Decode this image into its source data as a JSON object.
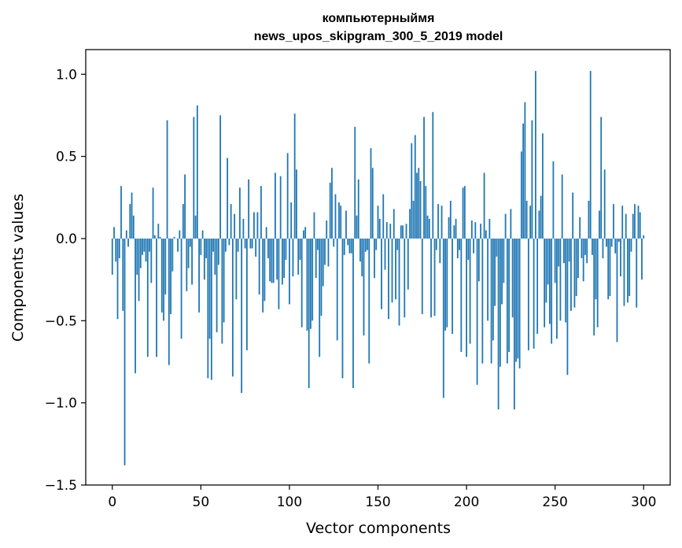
{
  "chart_data": {
    "type": "bar",
    "title": "компьютерныймя",
    "subtitle": "news_upos_skipgram_300_5_2019 model",
    "xlabel": "Vector components",
    "ylabel": "Components values",
    "xlim": [
      -15,
      315
    ],
    "ylim": [
      -1.5,
      1.15
    ],
    "xticks": [
      0,
      50,
      100,
      150,
      200,
      250,
      300
    ],
    "yticks": [
      -1.5,
      -1.0,
      -0.5,
      0.0,
      0.5,
      1.0
    ],
    "xtick_labels": [
      "0",
      "50",
      "100",
      "150",
      "200",
      "250",
      "300"
    ],
    "ytick_labels": [
      "−1.5",
      "−1.0",
      "−0.5",
      "0.0",
      "0.5",
      "1.0"
    ],
    "bar_color": "#1f77b4",
    "values": [
      -0.22,
      0.07,
      -0.14,
      -0.49,
      -0.12,
      0.32,
      -0.44,
      -1.38,
      0.05,
      -0.05,
      0.21,
      0.28,
      0.14,
      -0.82,
      -0.22,
      -0.38,
      -0.18,
      -0.1,
      -0.08,
      -0.14,
      -0.72,
      -0.08,
      -0.27,
      0.31,
      0.02,
      -0.72,
      0.09,
      0.01,
      -0.45,
      -0.5,
      -0.34,
      0.72,
      -0.77,
      -0.46,
      -0.2,
      0.01,
      0.0,
      -0.08,
      0.05,
      -0.61,
      0.21,
      0.39,
      -0.32,
      -0.18,
      -0.05,
      -0.28,
      0.74,
      0.14,
      0.81,
      -0.45,
      -0.1,
      0.05,
      -0.25,
      -0.12,
      -0.85,
      -0.61,
      -0.86,
      -0.08,
      -0.22,
      -0.57,
      -0.16,
      0.75,
      -0.64,
      -0.51,
      -0.08,
      0.49,
      -0.04,
      0.21,
      -0.84,
      0.15,
      -0.37,
      -0.08,
      0.31,
      -0.94,
      0.12,
      -0.06,
      -0.68,
      0.36,
      -0.06,
      -0.06,
      0.16,
      -0.11,
      0.16,
      -0.34,
      0.32,
      -0.45,
      -0.38,
      0.07,
      -0.12,
      -0.26,
      -0.27,
      -0.27,
      0.4,
      -0.25,
      -0.43,
      0.38,
      -0.28,
      -0.24,
      -0.13,
      0.52,
      -0.4,
      0.22,
      -0.23,
      0.76,
      0.42,
      -0.22,
      -0.13,
      -0.54,
      0.05,
      0.07,
      -0.56,
      -0.91,
      -0.55,
      -0.5,
      0.16,
      -0.24,
      -0.07,
      -0.72,
      -0.47,
      -0.29,
      -0.16,
      0.11,
      -0.17,
      0.34,
      0.43,
      -0.05,
      0.27,
      -0.62,
      0.22,
      0.2,
      -0.85,
      -0.1,
      0.17,
      -0.04,
      -0.09,
      -0.09,
      -0.91,
      0.68,
      0.14,
      0.36,
      -0.14,
      -0.23,
      -0.59,
      -0.08,
      -0.07,
      -0.76,
      0.55,
      0.43,
      -0.24,
      -0.07,
      0.2,
      0.12,
      -0.43,
      0.27,
      -0.19,
      0.1,
      -0.49,
      0.09,
      -0.39,
      0.18,
      -0.37,
      -0.07,
      -0.53,
      0.08,
      0.08,
      -0.48,
      0.09,
      -0.31,
      0.18,
      0.58,
      0.23,
      0.63,
      0.4,
      0.43,
      0.35,
      -0.46,
      0.74,
      0.32,
      0.14,
      0.12,
      -0.48,
      0.77,
      -0.47,
      -0.07,
      0.21,
      -0.15,
      0.2,
      -0.97,
      -0.56,
      -0.54,
      0.13,
      0.23,
      -0.58,
      0.08,
      0.12,
      -0.12,
      -0.07,
      -0.69,
      0.31,
      0.32,
      -0.72,
      -0.13,
      -0.64,
      0.11,
      -0.09,
      0.1,
      -0.89,
      -0.26,
      0.09,
      -0.76,
      0.4,
      0.05,
      -0.5,
      0.12,
      -0.76,
      -0.62,
      -0.41,
      -0.11,
      -1.04,
      -0.78,
      -0.4,
      -0.27,
      0.15,
      -0.76,
      -0.69,
      0.18,
      -0.48,
      -1.04,
      -0.75,
      -0.73,
      -0.79,
      0.53,
      0.7,
      0.83,
      0.23,
      -0.68,
      0.2,
      0.72,
      -0.67,
      1.02,
      -0.58,
      0.17,
      0.26,
      0.64,
      -0.54,
      -0.39,
      -0.28,
      -0.52,
      -0.64,
      0.47,
      -0.27,
      -0.61,
      -0.17,
      -0.5,
      0.39,
      -0.15,
      -0.51,
      -0.83,
      -0.14,
      -0.44,
      0.28,
      -0.42,
      -0.35,
      -0.24,
      0.13,
      -0.12,
      -0.26,
      -0.1,
      -0.15,
      0.23,
      1.02,
      -0.1,
      -0.59,
      -0.37,
      -0.54,
      0.17,
      0.74,
      -0.12,
      0.42,
      -0.05,
      -0.37,
      -0.35,
      -0.05,
      0.21,
      -0.09,
      -0.63,
      -0.02,
      -0.23,
      0.2,
      -0.41,
      0.15,
      -0.39,
      -0.35,
      -0.08,
      0.15,
      0.21,
      -0.42,
      0.2,
      0.16,
      -0.25,
      0.02
    ]
  }
}
